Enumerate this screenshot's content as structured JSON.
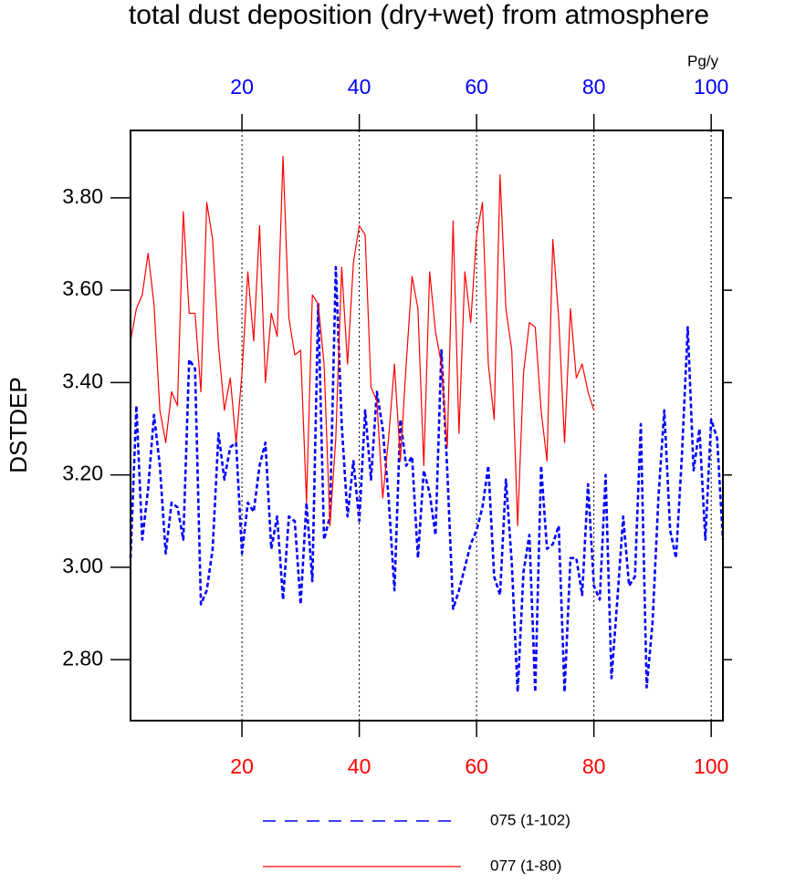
{
  "chart_data": {
    "type": "line",
    "title": "total dust deposition (dry+wet) from atmosphere",
    "y_label": "DSTDEP",
    "x2_unit_label": "Pg/y",
    "xlim": [
      1,
      102
    ],
    "xticks": [
      20,
      40,
      60,
      80,
      100
    ],
    "xtick_color": "#ff0000",
    "x2ticks": [
      20,
      40,
      60,
      80,
      100
    ],
    "x2tick_color": "#0000ff",
    "ylim": [
      2.668,
      3.946
    ],
    "yticks": [
      {
        "value": 2.8,
        "label": "2.80"
      },
      {
        "value": 3.0,
        "label": "3.00"
      },
      {
        "value": 3.2,
        "label": "3.20"
      },
      {
        "value": 3.4,
        "label": "3.40"
      },
      {
        "value": 3.6,
        "label": "3.60"
      },
      {
        "value": 3.8,
        "label": "3.80"
      }
    ],
    "grid": "x",
    "series": [
      {
        "name": "075 (1-102)",
        "color": "#0000ff",
        "dashed": true,
        "axis": "x2",
        "values": [
          3.02,
          3.35,
          3.06,
          3.17,
          3.33,
          3.22,
          3.03,
          3.14,
          3.13,
          3.06,
          3.45,
          3.43,
          2.92,
          2.95,
          3.04,
          3.29,
          3.19,
          3.26,
          3.27,
          3.03,
          3.14,
          3.12,
          3.22,
          3.27,
          3.04,
          3.11,
          2.93,
          3.11,
          3.1,
          2.92,
          3.14,
          2.97,
          3.57,
          3.06,
          3.11,
          3.65,
          3.31,
          3.11,
          3.23,
          3.1,
          3.34,
          3.19,
          3.38,
          3.3,
          3.15,
          2.95,
          3.32,
          3.22,
          3.24,
          3.02,
          3.21,
          3.16,
          3.07,
          3.47,
          3.21,
          2.91,
          2.95,
          3.0,
          3.05,
          3.08,
          3.13,
          3.22,
          2.98,
          2.94,
          3.19,
          3.01,
          2.73,
          2.99,
          3.07,
          2.73,
          3.22,
          3.04,
          3.05,
          3.09,
          2.73,
          3.02,
          3.02,
          2.94,
          3.18,
          2.96,
          2.93,
          3.2,
          2.76,
          2.93,
          3.11,
          2.96,
          2.98,
          3.31,
          2.74,
          2.88,
          3.15,
          3.34,
          3.08,
          3.02,
          3.24,
          3.52,
          3.21,
          3.3,
          3.06,
          3.32,
          3.28,
          3.06
        ]
      },
      {
        "name": "077 (1-80)",
        "color": "#ff0000",
        "dashed": false,
        "values": [
          3.49,
          3.56,
          3.59,
          3.68,
          3.57,
          3.34,
          3.27,
          3.38,
          3.35,
          3.77,
          3.55,
          3.55,
          3.38,
          3.79,
          3.71,
          3.48,
          3.34,
          3.41,
          3.27,
          3.42,
          3.64,
          3.49,
          3.74,
          3.4,
          3.55,
          3.5,
          3.89,
          3.54,
          3.46,
          3.47,
          3.14,
          3.59,
          3.57,
          3.44,
          3.09,
          3.28,
          3.65,
          3.44,
          3.66,
          3.74,
          3.72,
          3.39,
          3.36,
          3.15,
          3.28,
          3.44,
          3.23,
          3.44,
          3.63,
          3.56,
          3.22,
          3.64,
          3.51,
          3.44,
          3.26,
          3.75,
          3.29,
          3.64,
          3.53,
          3.72,
          3.79,
          3.44,
          3.32,
          3.85,
          3.56,
          3.47,
          3.09,
          3.42,
          3.53,
          3.52,
          3.34,
          3.23,
          3.71,
          3.54,
          3.27,
          3.56,
          3.41,
          3.44,
          3.38,
          3.34
        ]
      }
    ]
  }
}
